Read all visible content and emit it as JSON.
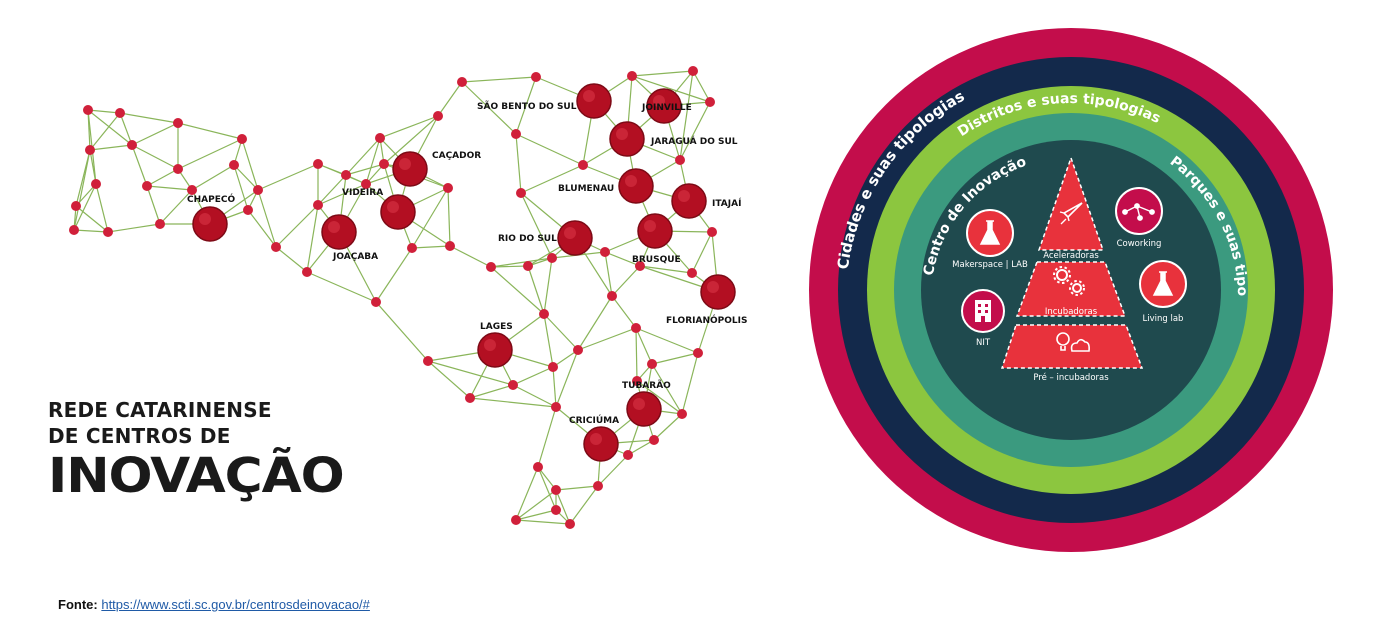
{
  "network_title": {
    "line1": "REDE CATARINENSE",
    "line2": "DE CENTROS DE",
    "line3": "INOVAÇÃO"
  },
  "cities": [
    "JOINVILLE",
    "SÃO BENTO DO SUL",
    "JARAGUÁ DO SUL",
    "CAÇADOR",
    "VIDEIRA",
    "BLUMENAU",
    "ITAJAÍ",
    "CHAPECÓ",
    "RIO DO SUL",
    "JOAÇABA",
    "BRUSQUE",
    "FLORIANÓPOLIS",
    "LAGES",
    "TUBARÃO",
    "CRICIÚMA"
  ],
  "rings": {
    "outer": "Cidades e suas tipologias",
    "second": "Distritos e suas tipologias",
    "third": "Parques e suas tipologias",
    "fourth": "Centro de Inovação"
  },
  "inner_items": {
    "makerspace": "Makerspace | LAB",
    "aceleradoras": "Aceleradoras",
    "coworking": "Coworking",
    "incubadoras": "Incubadoras",
    "living_lab": "Living lab",
    "nit": "NIT",
    "pre_incubadoras": "Pré – incubadoras"
  },
  "colors": {
    "outer_ring": "#c30d4b",
    "second_ring": "#13294b",
    "third_ring": "#8cc63f",
    "fourth_ring": "#3b9a7f",
    "core": "#1f4a4e",
    "node": "#c8102e",
    "edge": "#8ab55a",
    "pyramid": "#e8323c"
  },
  "footer": {
    "label": "Fonte:",
    "url_text": "https://www.scti.sc.gov.br/centrosdeinovacao/#"
  }
}
